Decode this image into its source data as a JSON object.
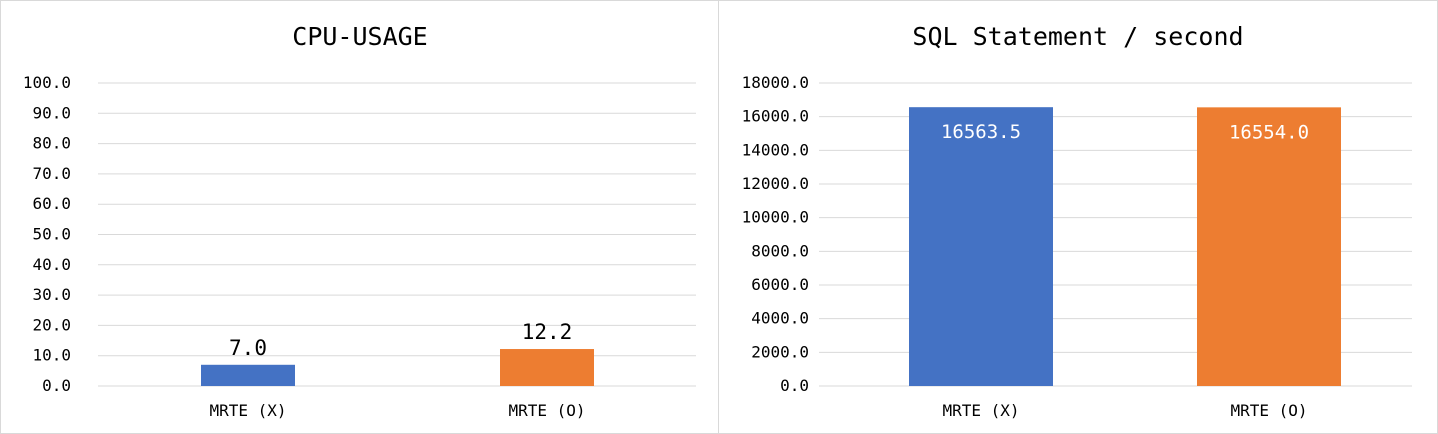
{
  "chart_data": [
    {
      "type": "bar",
      "title": "CPU-USAGE",
      "categories": [
        "MRTE (X)",
        "MRTE (O)"
      ],
      "values": [
        7.0,
        12.2
      ],
      "value_labels": [
        "7.0",
        "12.2"
      ],
      "label_position": "outside-end",
      "ylim": [
        0,
        100
      ],
      "yticks": [
        "0.0",
        "10.0",
        "20.0",
        "30.0",
        "40.0",
        "50.0",
        "60.0",
        "70.0",
        "80.0",
        "90.0",
        "100.0"
      ],
      "ytick_values": [
        0,
        10,
        20,
        30,
        40,
        50,
        60,
        70,
        80,
        90,
        100
      ],
      "colors": [
        "#4472c4",
        "#ed7d31"
      ],
      "grid": true,
      "legend": "none"
    },
    {
      "type": "bar",
      "title": "SQL Statement / second",
      "categories": [
        "MRTE (X)",
        "MRTE (O)"
      ],
      "values": [
        16563.5,
        16554.0
      ],
      "value_labels": [
        "16563.5",
        "16554.0"
      ],
      "label_position": "inside-end",
      "ylim": [
        0,
        18000
      ],
      "yticks": [
        "0.0",
        "2000.0",
        "4000.0",
        "6000.0",
        "8000.0",
        "10000.0",
        "12000.0",
        "14000.0",
        "16000.0",
        "18000.0"
      ],
      "ytick_values": [
        0,
        2000,
        4000,
        6000,
        8000,
        10000,
        12000,
        14000,
        16000,
        18000
      ],
      "colors": [
        "#4472c4",
        "#ed7d31"
      ],
      "grid": true,
      "legend": "none"
    }
  ]
}
